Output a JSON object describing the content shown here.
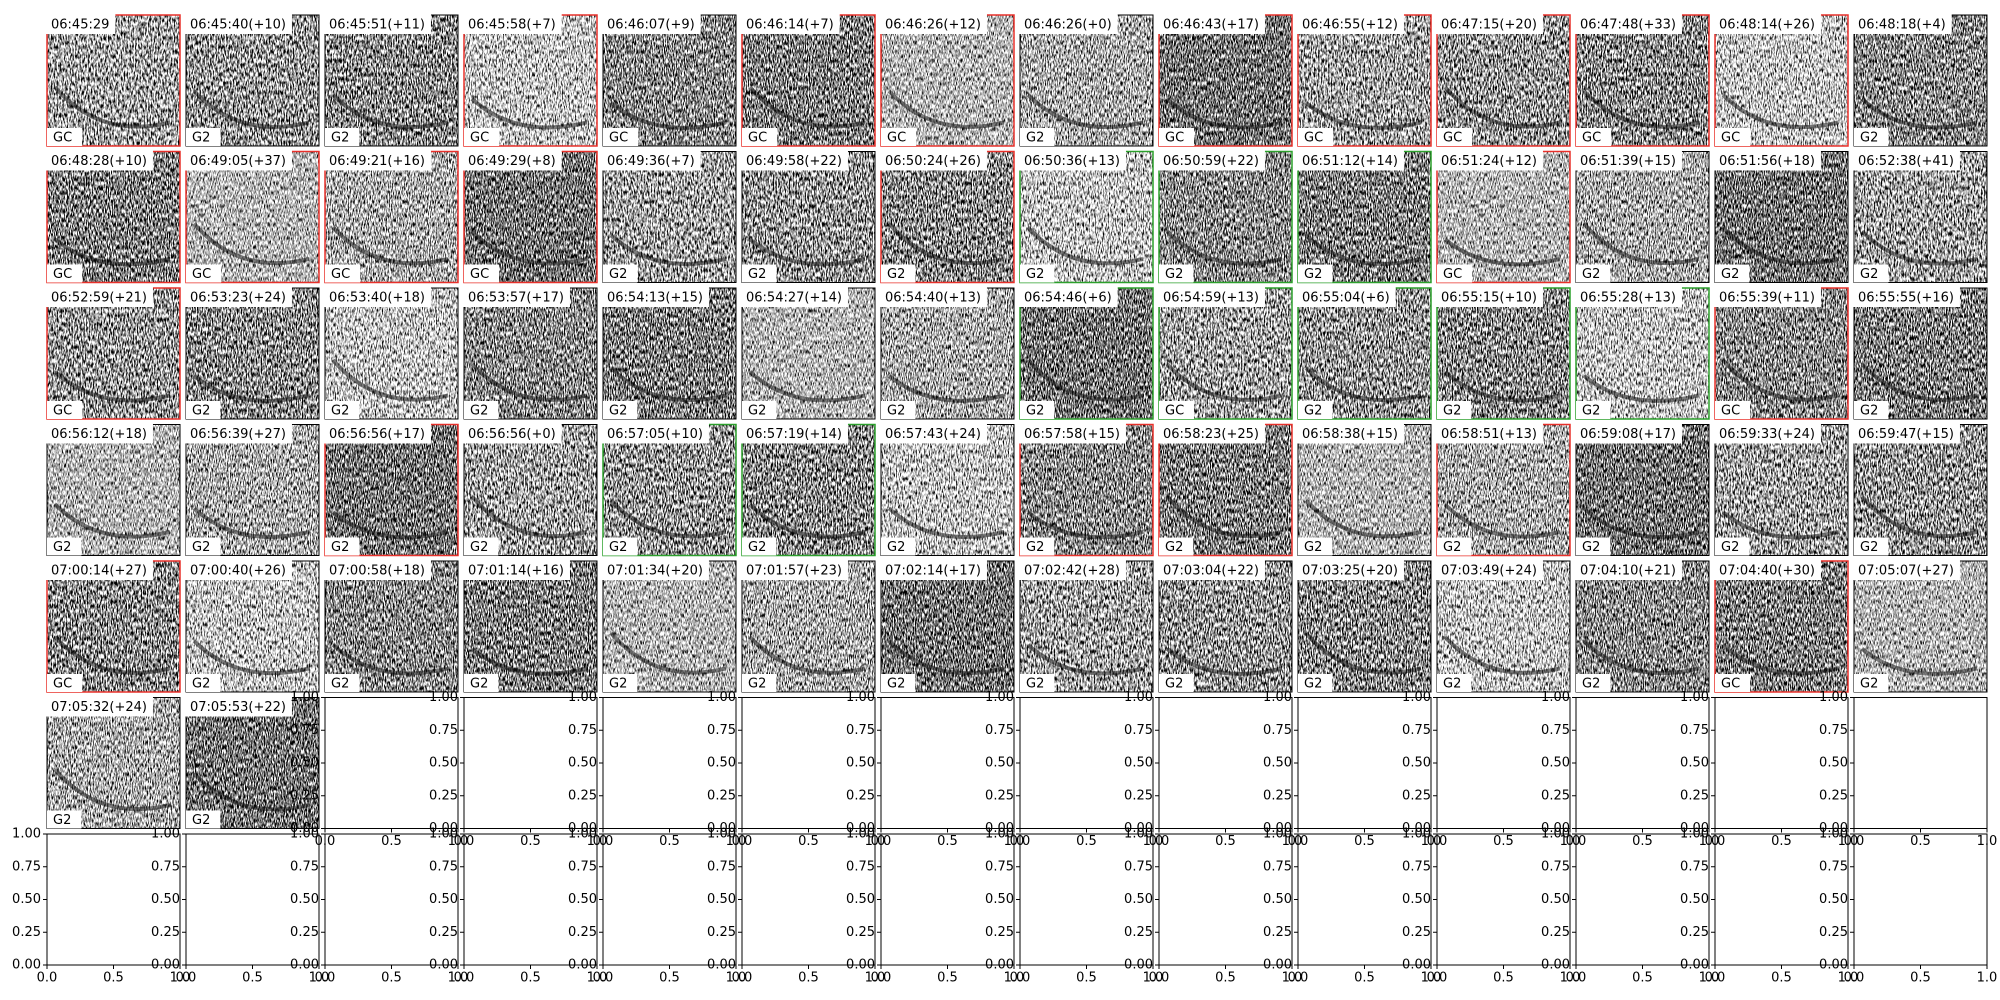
{
  "panels": [
    {
      "time": "06:45:29",
      "label": "GC",
      "border": "red"
    },
    {
      "time": "06:45:40(+10)",
      "label": "G2",
      "border": "black"
    },
    {
      "time": "06:45:51(+11)",
      "label": "G2",
      "border": "black"
    },
    {
      "time": "06:45:58(+7)",
      "label": "GC",
      "border": "red"
    },
    {
      "time": "06:46:07(+9)",
      "label": "GC",
      "border": "black"
    },
    {
      "time": "06:46:14(+7)",
      "label": "GC",
      "border": "red"
    },
    {
      "time": "06:46:26(+12)",
      "label": "GC",
      "border": "red"
    },
    {
      "time": "06:46:26(+0)",
      "label": "G2",
      "border": "black"
    },
    {
      "time": "06:46:43(+17)",
      "label": "GC",
      "border": "red"
    },
    {
      "time": "06:46:55(+12)",
      "label": "GC",
      "border": "red"
    },
    {
      "time": "06:47:15(+20)",
      "label": "GC",
      "border": "red"
    },
    {
      "time": "06:47:48(+33)",
      "label": "GC",
      "border": "red"
    },
    {
      "time": "06:48:14(+26)",
      "label": "GC",
      "border": "red"
    },
    {
      "time": "06:48:18(+4)",
      "label": "G2",
      "border": "black"
    },
    {
      "time": "06:48:28(+10)",
      "label": "GC",
      "border": "red"
    },
    {
      "time": "06:49:05(+37)",
      "label": "GC",
      "border": "red"
    },
    {
      "time": "06:49:21(+16)",
      "label": "GC",
      "border": "red"
    },
    {
      "time": "06:49:29(+8)",
      "label": "GC",
      "border": "red"
    },
    {
      "time": "06:49:36(+7)",
      "label": "G2",
      "border": "black"
    },
    {
      "time": "06:49:58(+22)",
      "label": "G2",
      "border": "black"
    },
    {
      "time": "06:50:24(+26)",
      "label": "G2",
      "border": "red"
    },
    {
      "time": "06:50:36(+13)",
      "label": "G2",
      "border": "green"
    },
    {
      "time": "06:50:59(+22)",
      "label": "G2",
      "border": "green"
    },
    {
      "time": "06:51:12(+14)",
      "label": "G2",
      "border": "green"
    },
    {
      "time": "06:51:24(+12)",
      "label": "GC",
      "border": "red"
    },
    {
      "time": "06:51:39(+15)",
      "label": "G2",
      "border": "black"
    },
    {
      "time": "06:51:56(+18)",
      "label": "G2",
      "border": "black"
    },
    {
      "time": "06:52:38(+41)",
      "label": "G2",
      "border": "black"
    },
    {
      "time": "06:52:59(+21)",
      "label": "GC",
      "border": "red"
    },
    {
      "time": "06:53:23(+24)",
      "label": "G2",
      "border": "black"
    },
    {
      "time": "06:53:40(+18)",
      "label": "G2",
      "border": "black"
    },
    {
      "time": "06:53:57(+17)",
      "label": "G2",
      "border": "black"
    },
    {
      "time": "06:54:13(+15)",
      "label": "G2",
      "border": "black"
    },
    {
      "time": "06:54:27(+14)",
      "label": "G2",
      "border": "black"
    },
    {
      "time": "06:54:40(+13)",
      "label": "G2",
      "border": "black"
    },
    {
      "time": "06:54:46(+6)",
      "label": "G2",
      "border": "green"
    },
    {
      "time": "06:54:59(+13)",
      "label": "GC",
      "border": "green"
    },
    {
      "time": "06:55:04(+6)",
      "label": "G2",
      "border": "green"
    },
    {
      "time": "06:55:15(+10)",
      "label": "G2",
      "border": "green"
    },
    {
      "time": "06:55:28(+13)",
      "label": "G2",
      "border": "green"
    },
    {
      "time": "06:55:39(+11)",
      "label": "GC",
      "border": "red"
    },
    {
      "time": "06:55:55(+16)",
      "label": "G2",
      "border": "black"
    },
    {
      "time": "06:56:12(+18)",
      "label": "G2",
      "border": "black"
    },
    {
      "time": "06:56:39(+27)",
      "label": "G2",
      "border": "black"
    },
    {
      "time": "06:56:56(+17)",
      "label": "G2",
      "border": "red"
    },
    {
      "time": "06:56:56(+0)",
      "label": "G2",
      "border": "black"
    },
    {
      "time": "06:57:05(+10)",
      "label": "G2",
      "border": "green"
    },
    {
      "time": "06:57:19(+14)",
      "label": "G2",
      "border": "green"
    },
    {
      "time": "06:57:43(+24)",
      "label": "G2",
      "border": "black"
    },
    {
      "time": "06:57:58(+15)",
      "label": "G2",
      "border": "red"
    },
    {
      "time": "06:58:23(+25)",
      "label": "G2",
      "border": "red"
    },
    {
      "time": "06:58:38(+15)",
      "label": "G2",
      "border": "black"
    },
    {
      "time": "06:58:51(+13)",
      "label": "G2",
      "border": "red"
    },
    {
      "time": "06:59:08(+17)",
      "label": "G2",
      "border": "black"
    },
    {
      "time": "06:59:33(+24)",
      "label": "G2",
      "border": "black"
    },
    {
      "time": "06:59:47(+15)",
      "label": "G2",
      "border": "black"
    },
    {
      "time": "07:00:14(+27)",
      "label": "GC",
      "border": "red"
    },
    {
      "time": "07:00:40(+26)",
      "label": "G2",
      "border": "black"
    },
    {
      "time": "07:00:58(+18)",
      "label": "G2",
      "border": "black"
    },
    {
      "time": "07:01:14(+16)",
      "label": "G2",
      "border": "black"
    },
    {
      "time": "07:01:34(+20)",
      "label": "G2",
      "border": "black"
    },
    {
      "time": "07:01:57(+23)",
      "label": "G2",
      "border": "black"
    },
    {
      "time": "07:02:14(+17)",
      "label": "G2",
      "border": "black"
    },
    {
      "time": "07:02:42(+28)",
      "label": "G2",
      "border": "black"
    },
    {
      "time": "07:03:04(+22)",
      "label": "G2",
      "border": "black"
    },
    {
      "time": "07:03:25(+20)",
      "label": "G2",
      "border": "black"
    },
    {
      "time": "07:03:49(+24)",
      "label": "G2",
      "border": "black"
    },
    {
      "time": "07:04:10(+21)",
      "label": "G2",
      "border": "black"
    },
    {
      "time": "07:04:40(+30)",
      "label": "GC",
      "border": "red"
    },
    {
      "time": "07:05:07(+27)",
      "label": "G2",
      "border": "black"
    },
    {
      "time": "07:05:32(+24)",
      "label": "G2",
      "border": "black"
    },
    {
      "time": "07:05:53(+22)",
      "label": "G2",
      "border": "black"
    }
  ],
  "empty_axes": {
    "yticks": [
      "0.00",
      "0.25",
      "0.50",
      "0.75",
      "1.00"
    ],
    "xticks": [
      "0.0",
      "0.5",
      "1.0"
    ]
  }
}
